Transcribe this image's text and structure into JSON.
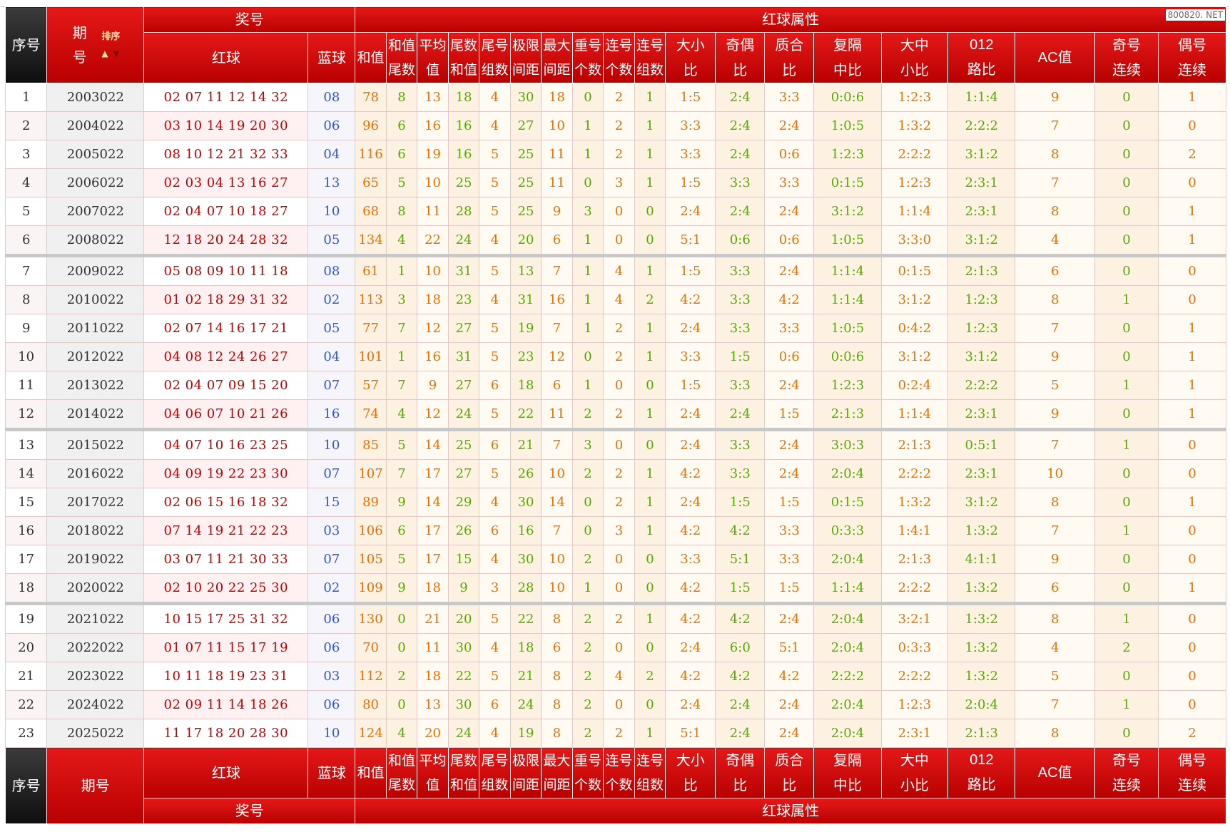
{
  "watermark": "800820. NET",
  "header": {
    "seq": "序号",
    "period_a": "期",
    "period_b": "号",
    "sort": "排序",
    "prize": "奖号",
    "red_ball": "红球",
    "blue_ball": "蓝球",
    "red_attr": "红球属性",
    "cols": [
      [
        "和值",
        ""
      ],
      [
        "和值",
        "尾数"
      ],
      [
        "平均",
        "值"
      ],
      [
        "尾数",
        "和值"
      ],
      [
        "尾号",
        "组数"
      ],
      [
        "极限",
        "间距"
      ],
      [
        "最大",
        "间距"
      ],
      [
        "重号",
        "个数"
      ],
      [
        "连号",
        "个数"
      ],
      [
        "连号",
        "组数"
      ],
      [
        "大小",
        "比"
      ],
      [
        "奇偶",
        "比"
      ],
      [
        "质合",
        "比"
      ],
      [
        "复隔",
        "中比"
      ],
      [
        "大中",
        "小比"
      ],
      [
        "012",
        "路比"
      ],
      [
        "AC值",
        ""
      ],
      [
        "奇号",
        "连续"
      ],
      [
        "偶号",
        "连续"
      ]
    ],
    "period_full": "期号"
  },
  "rows": [
    [
      "1",
      "2003022",
      "02 07 11 12 14 32",
      "08",
      "78",
      "8",
      "13",
      "18",
      "4",
      "30",
      "18",
      "0",
      "2",
      "1",
      "1:5",
      "2:4",
      "3:3",
      "0:0:6",
      "1:2:3",
      "1:1:4",
      "9",
      "0",
      "1"
    ],
    [
      "2",
      "2004022",
      "03 10 14 19 20 30",
      "06",
      "96",
      "6",
      "16",
      "16",
      "4",
      "27",
      "10",
      "1",
      "2",
      "1",
      "3:3",
      "2:4",
      "2:4",
      "1:0:5",
      "1:3:2",
      "2:2:2",
      "7",
      "0",
      "0"
    ],
    [
      "3",
      "2005022",
      "08 10 12 21 32 33",
      "04",
      "116",
      "6",
      "19",
      "16",
      "5",
      "25",
      "11",
      "1",
      "2",
      "1",
      "3:3",
      "2:4",
      "0:6",
      "1:2:3",
      "2:2:2",
      "3:1:2",
      "8",
      "0",
      "2"
    ],
    [
      "4",
      "2006022",
      "02 03 04 13 16 27",
      "13",
      "65",
      "5",
      "10",
      "25",
      "5",
      "25",
      "11",
      "0",
      "3",
      "1",
      "1:5",
      "3:3",
      "3:3",
      "0:1:5",
      "1:2:3",
      "2:3:1",
      "7",
      "0",
      "0"
    ],
    [
      "5",
      "2007022",
      "02 04 07 10 18 27",
      "10",
      "68",
      "8",
      "11",
      "28",
      "5",
      "25",
      "9",
      "3",
      "0",
      "0",
      "2:4",
      "2:4",
      "2:4",
      "3:1:2",
      "1:1:4",
      "2:3:1",
      "8",
      "0",
      "1"
    ],
    [
      "6",
      "2008022",
      "12 18 20 24 28 32",
      "05",
      "134",
      "4",
      "22",
      "24",
      "4",
      "20",
      "6",
      "1",
      "0",
      "0",
      "5:1",
      "0:6",
      "0:6",
      "1:0:5",
      "3:3:0",
      "3:1:2",
      "4",
      "0",
      "1"
    ],
    [
      "7",
      "2009022",
      "05 08 09 10 11 18",
      "08",
      "61",
      "1",
      "10",
      "31",
      "5",
      "13",
      "7",
      "1",
      "4",
      "1",
      "1:5",
      "3:3",
      "2:4",
      "1:1:4",
      "0:1:5",
      "2:1:3",
      "6",
      "0",
      "0"
    ],
    [
      "8",
      "2010022",
      "01 02 18 29 31 32",
      "02",
      "113",
      "3",
      "18",
      "23",
      "4",
      "31",
      "16",
      "1",
      "4",
      "2",
      "4:2",
      "3:3",
      "4:2",
      "1:1:4",
      "3:1:2",
      "1:2:3",
      "8",
      "1",
      "0"
    ],
    [
      "9",
      "2011022",
      "02 07 14 16 17 21",
      "05",
      "77",
      "7",
      "12",
      "27",
      "5",
      "19",
      "7",
      "1",
      "2",
      "1",
      "2:4",
      "3:3",
      "3:3",
      "1:0:5",
      "0:4:2",
      "1:2:3",
      "7",
      "0",
      "1"
    ],
    [
      "10",
      "2012022",
      "04 08 12 24 26 27",
      "04",
      "101",
      "1",
      "16",
      "31",
      "5",
      "23",
      "12",
      "0",
      "2",
      "1",
      "3:3",
      "1:5",
      "0:6",
      "0:0:6",
      "3:1:2",
      "3:1:2",
      "9",
      "0",
      "1"
    ],
    [
      "11",
      "2013022",
      "02 04 07 09 15 20",
      "07",
      "57",
      "7",
      "9",
      "27",
      "6",
      "18",
      "6",
      "1",
      "0",
      "0",
      "1:5",
      "3:3",
      "2:4",
      "1:2:3",
      "0:2:4",
      "2:2:2",
      "5",
      "1",
      "1"
    ],
    [
      "12",
      "2014022",
      "04 06 07 10 21 26",
      "16",
      "74",
      "4",
      "12",
      "24",
      "5",
      "22",
      "11",
      "2",
      "2",
      "1",
      "2:4",
      "2:4",
      "1:5",
      "2:1:3",
      "1:1:4",
      "2:3:1",
      "9",
      "0",
      "1"
    ],
    [
      "13",
      "2015022",
      "04 07 10 16 23 25",
      "10",
      "85",
      "5",
      "14",
      "25",
      "6",
      "21",
      "7",
      "3",
      "0",
      "0",
      "2:4",
      "3:3",
      "2:4",
      "3:0:3",
      "2:1:3",
      "0:5:1",
      "7",
      "1",
      "0"
    ],
    [
      "14",
      "2016022",
      "04 09 19 22 23 30",
      "07",
      "107",
      "7",
      "17",
      "27",
      "5",
      "26",
      "10",
      "2",
      "2",
      "1",
      "4:2",
      "3:3",
      "2:4",
      "2:0:4",
      "2:2:2",
      "2:3:1",
      "10",
      "0",
      "0"
    ],
    [
      "15",
      "2017022",
      "02 06 15 16 18 32",
      "15",
      "89",
      "9",
      "14",
      "29",
      "4",
      "30",
      "14",
      "0",
      "2",
      "1",
      "2:4",
      "1:5",
      "1:5",
      "0:1:5",
      "1:3:2",
      "3:1:2",
      "8",
      "0",
      "1"
    ],
    [
      "16",
      "2018022",
      "07 14 19 21 22 23",
      "03",
      "106",
      "6",
      "17",
      "26",
      "6",
      "16",
      "7",
      "0",
      "3",
      "1",
      "4:2",
      "4:2",
      "3:3",
      "0:3:3",
      "1:4:1",
      "1:3:2",
      "7",
      "1",
      "0"
    ],
    [
      "17",
      "2019022",
      "03 07 11 21 30 33",
      "07",
      "105",
      "5",
      "17",
      "15",
      "4",
      "30",
      "10",
      "2",
      "0",
      "0",
      "3:3",
      "5:1",
      "3:3",
      "2:0:4",
      "2:1:3",
      "4:1:1",
      "9",
      "0",
      "0"
    ],
    [
      "18",
      "2020022",
      "02 10 20 22 25 30",
      "02",
      "109",
      "9",
      "18",
      "9",
      "3",
      "28",
      "10",
      "1",
      "0",
      "0",
      "4:2",
      "1:5",
      "1:5",
      "1:1:4",
      "2:2:2",
      "1:3:2",
      "6",
      "0",
      "1"
    ],
    [
      "19",
      "2021022",
      "10 15 17 25 31 32",
      "06",
      "130",
      "0",
      "21",
      "20",
      "5",
      "22",
      "8",
      "2",
      "2",
      "1",
      "4:2",
      "4:2",
      "2:4",
      "2:0:4",
      "3:2:1",
      "1:3:2",
      "8",
      "1",
      "0"
    ],
    [
      "20",
      "2022022",
      "01 07 11 15 17 19",
      "06",
      "70",
      "0",
      "11",
      "30",
      "4",
      "18",
      "6",
      "2",
      "0",
      "0",
      "2:4",
      "6:0",
      "5:1",
      "2:0:4",
      "0:3:3",
      "1:3:2",
      "4",
      "2",
      "0"
    ],
    [
      "21",
      "2023022",
      "10 11 18 19 23 31",
      "03",
      "112",
      "2",
      "18",
      "22",
      "5",
      "21",
      "8",
      "2",
      "4",
      "2",
      "4:2",
      "4:2",
      "4:2",
      "2:2:2",
      "2:2:2",
      "1:3:2",
      "5",
      "0",
      "0"
    ],
    [
      "22",
      "2024022",
      "02 09 11 14 18 26",
      "06",
      "80",
      "0",
      "13",
      "30",
      "6",
      "24",
      "8",
      "2",
      "0",
      "0",
      "2:4",
      "2:4",
      "2:4",
      "2:0:4",
      "1:2:3",
      "2:0:4",
      "7",
      "1",
      "0"
    ],
    [
      "23",
      "2025022",
      "11 17 18 20 28 30",
      "10",
      "124",
      "4",
      "20",
      "24",
      "4",
      "19",
      "8",
      "2",
      "2",
      "1",
      "5:1",
      "2:4",
      "2:4",
      "2:0:4",
      "2:3:1",
      "2:1:3",
      "8",
      "0",
      "2"
    ]
  ]
}
